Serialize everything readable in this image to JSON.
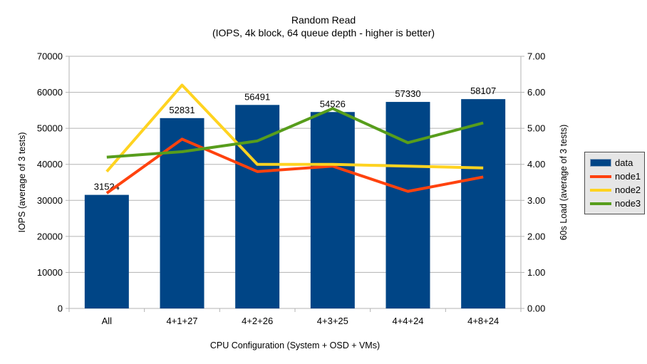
{
  "chart_data": {
    "type": "bar+line",
    "title": "Random Read",
    "subtitle": "(IOPS, 4k block, 64 queue depth - higher is better)",
    "categories": [
      "All",
      "4+1+27",
      "4+2+26",
      "4+3+25",
      "4+4+24",
      "4+8+24"
    ],
    "bar_series": {
      "name": "data",
      "axis": "left",
      "color": "#004586",
      "values": [
        31524,
        52831,
        56491,
        54526,
        57330,
        58107
      ],
      "data_labels": [
        "31524",
        "52831",
        "56491",
        "54526",
        "57330",
        "58107"
      ]
    },
    "line_series": [
      {
        "name": "node1",
        "axis": "right",
        "color": "#FF420E",
        "values": [
          3.2,
          4.7,
          3.8,
          3.95,
          3.25,
          3.65
        ]
      },
      {
        "name": "node2",
        "axis": "right",
        "color": "#FFD320",
        "values": [
          3.8,
          6.2,
          4.0,
          4.0,
          3.95,
          3.9
        ]
      },
      {
        "name": "node3",
        "axis": "right",
        "color": "#579D1C",
        "values": [
          4.2,
          4.35,
          4.65,
          5.55,
          4.6,
          5.15
        ]
      }
    ],
    "left_axis": {
      "label": "IOPS (average of 3 tests)",
      "min": 0,
      "max": 70000,
      "step": 10000
    },
    "right_axis": {
      "label": "60s Load (average of 3 tests)",
      "min": 0,
      "max": 7,
      "step": 1,
      "decimals": 2
    },
    "xlabel": "CPU Configuration (System + OSD + VMs)",
    "legend": {
      "position": "right",
      "entries": [
        "data",
        "node1",
        "node2",
        "node3"
      ]
    },
    "grid": "horizontal",
    "colors": {
      "gridline": "#b3b3b3",
      "axis": "#b3b3b3",
      "text": "#000000",
      "legend_bg": "#e6e6e6"
    }
  }
}
